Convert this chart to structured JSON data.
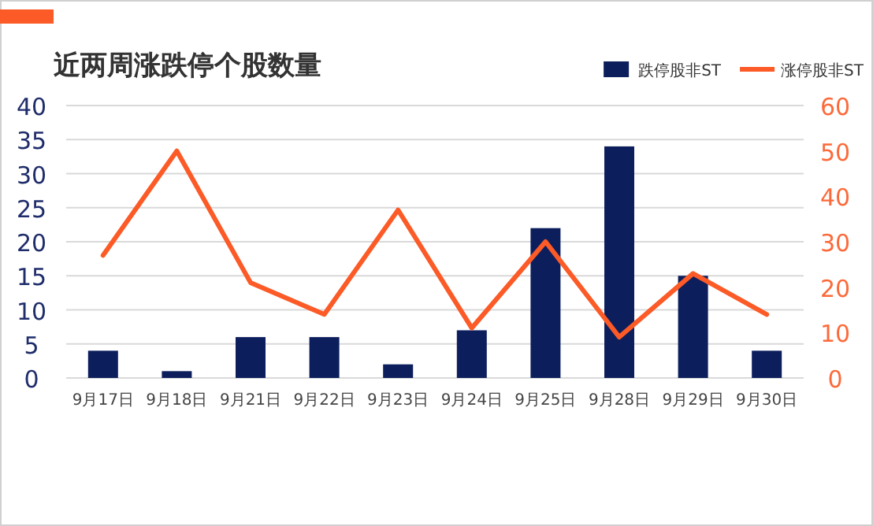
{
  "chart_data": {
    "type": "bar",
    "title": "近两周涨跌停个股数量",
    "categories": [
      "9月17日",
      "9月18日",
      "9月21日",
      "9月22日",
      "9月23日",
      "9月24日",
      "9月25日",
      "9月28日",
      "9月29日",
      "9月30日"
    ],
    "series": [
      {
        "name": "跌停股非ST",
        "color": "#0c1f5c",
        "values": [
          4,
          1,
          6,
          6,
          2,
          7,
          22,
          34,
          15,
          4
        ]
      },
      {
        "name": "涨停股非ST",
        "type": "line",
        "axis": "y2",
        "color": "#fc5a26",
        "values": [
          27,
          50,
          21,
          14,
          37,
          11,
          30,
          9,
          23,
          14
        ]
      }
    ],
    "ylim": [
      0,
      40
    ],
    "yticks": [
      0,
      5,
      10,
      15,
      20,
      25,
      30,
      35,
      40
    ],
    "y2lim": [
      0,
      60
    ],
    "y2ticks": [
      0,
      10,
      20,
      30,
      40,
      50,
      60
    ],
    "grid": "y",
    "legend": "top right",
    "line_style": "solid",
    "marker": "none"
  }
}
